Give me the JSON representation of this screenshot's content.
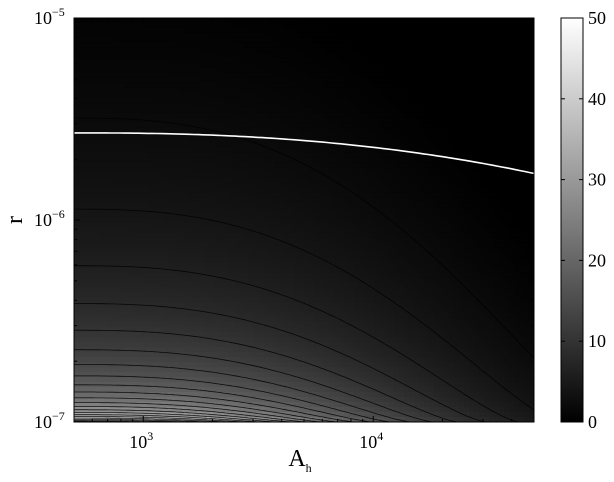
{
  "chart_data": {
    "type": "heatmap",
    "title": "",
    "xlabel": "A",
    "xlabel_subscript": "h",
    "ylabel": "r",
    "x_scale": "log",
    "y_scale": "log",
    "xlim": [
      500,
      50000
    ],
    "ylim": [
      1e-07,
      1e-05
    ],
    "x_ticks": [
      {
        "value": 1000,
        "base": "10",
        "exp": "3"
      },
      {
        "value": 10000,
        "base": "10",
        "exp": "4"
      }
    ],
    "y_ticks": [
      {
        "value": 1e-07,
        "base": "10",
        "exp": "−7"
      },
      {
        "value": 1e-06,
        "base": "10",
        "exp": "−6"
      },
      {
        "value": 1e-05,
        "base": "10",
        "exp": "−5"
      }
    ],
    "colorbar": {
      "colormap": "gray",
      "range": [
        0,
        50
      ],
      "ticks": [
        "0",
        "10",
        "20",
        "30",
        "40",
        "50"
      ]
    },
    "highlight_contour": {
      "color": "#ffffff",
      "r_at_left": 2.7e-06,
      "r_at_right": 1.7e-06
    },
    "contour_levels": [
      2,
      4,
      6,
      8,
      10,
      12,
      14,
      16,
      18,
      20,
      22,
      24,
      26,
      28,
      30,
      32,
      34,
      36,
      38,
      40,
      42,
      44,
      46,
      48
    ],
    "contour_color": "#000000",
    "grid": false
  }
}
